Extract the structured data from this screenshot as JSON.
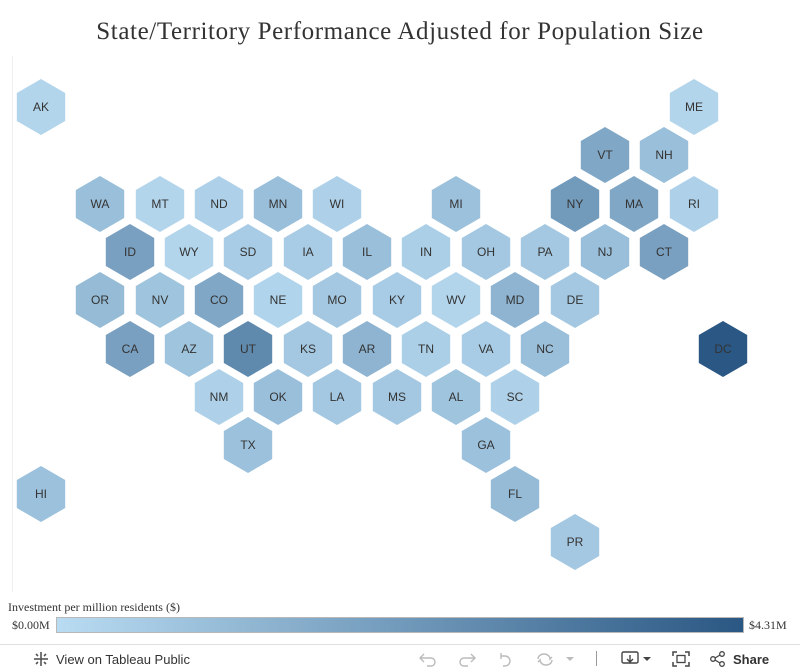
{
  "title": "State/Territory Performance Adjusted for Population Size",
  "colors": {
    "low": "#b9dcf2",
    "high": "#2a5783",
    "label": "#333333"
  },
  "legend": {
    "title": "Investment per million residents ($)",
    "min_label": "$0.00M",
    "max_label": "$4.31M"
  },
  "map": {
    "regions": [
      {
        "code": "AK",
        "level": 0.05
      },
      {
        "code": "ME",
        "level": 0.05
      },
      {
        "code": "VT",
        "level": 0.4
      },
      {
        "code": "NH",
        "level": 0.22
      },
      {
        "code": "WA",
        "level": 0.22
      },
      {
        "code": "MT",
        "level": 0.05
      },
      {
        "code": "ND",
        "level": 0.08
      },
      {
        "code": "MN",
        "level": 0.22
      },
      {
        "code": "WI",
        "level": 0.08
      },
      {
        "code": "MI",
        "level": 0.2
      },
      {
        "code": "NY",
        "level": 0.5
      },
      {
        "code": "MA",
        "level": 0.4
      },
      {
        "code": "RI",
        "level": 0.08
      },
      {
        "code": "ID",
        "level": 0.45
      },
      {
        "code": "WY",
        "level": 0.05
      },
      {
        "code": "SD",
        "level": 0.12
      },
      {
        "code": "IA",
        "level": 0.12
      },
      {
        "code": "IL",
        "level": 0.22
      },
      {
        "code": "IN",
        "level": 0.1
      },
      {
        "code": "OH",
        "level": 0.15
      },
      {
        "code": "PA",
        "level": 0.15
      },
      {
        "code": "NJ",
        "level": 0.22
      },
      {
        "code": "CT",
        "level": 0.45
      },
      {
        "code": "OR",
        "level": 0.25
      },
      {
        "code": "NV",
        "level": 0.18
      },
      {
        "code": "CO",
        "level": 0.4
      },
      {
        "code": "NE",
        "level": 0.06
      },
      {
        "code": "MO",
        "level": 0.15
      },
      {
        "code": "KY",
        "level": 0.12
      },
      {
        "code": "WV",
        "level": 0.05
      },
      {
        "code": "MD",
        "level": 0.3
      },
      {
        "code": "DE",
        "level": 0.15
      },
      {
        "code": "DC",
        "level": 1.0
      },
      {
        "code": "CA",
        "level": 0.45
      },
      {
        "code": "AZ",
        "level": 0.18
      },
      {
        "code": "UT",
        "level": 0.62
      },
      {
        "code": "KS",
        "level": 0.15
      },
      {
        "code": "AR",
        "level": 0.3
      },
      {
        "code": "TN",
        "level": 0.1
      },
      {
        "code": "VA",
        "level": 0.12
      },
      {
        "code": "NC",
        "level": 0.22
      },
      {
        "code": "NM",
        "level": 0.08
      },
      {
        "code": "OK",
        "level": 0.22
      },
      {
        "code": "LA",
        "level": 0.15
      },
      {
        "code": "MS",
        "level": 0.15
      },
      {
        "code": "AL",
        "level": 0.18
      },
      {
        "code": "SC",
        "level": 0.08
      },
      {
        "code": "TX",
        "level": 0.2
      },
      {
        "code": "GA",
        "level": 0.2
      },
      {
        "code": "HI",
        "level": 0.2
      },
      {
        "code": "FL",
        "level": 0.25
      },
      {
        "code": "PR",
        "level": 0.15
      }
    ]
  },
  "toolbar": {
    "view_label": "View on Tableau Public",
    "share_label": "Share",
    "icons": [
      "tableau-logo-icon",
      "undo-icon",
      "redo-icon",
      "revert-icon",
      "refresh-icon",
      "pause-dropdown-icon",
      "download-icon",
      "fullscreen-icon",
      "share-icon"
    ]
  }
}
